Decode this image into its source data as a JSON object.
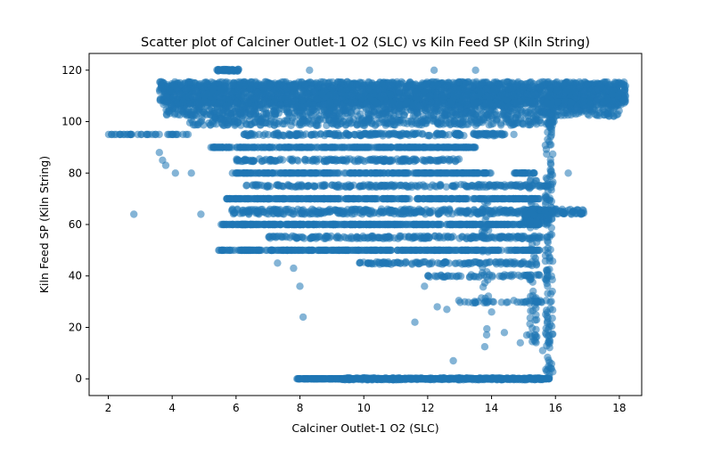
{
  "chart_data": {
    "type": "scatter",
    "title": "Scatter plot of Calciner Outlet-1 O2 (SLC) vs Kiln Feed  SP  (Kiln String)",
    "xlabel": "Calciner Outlet-1 O2 (SLC)",
    "ylabel": "Kiln Feed  SP  (Kiln String)",
    "xlim": [
      1.4,
      18.7
    ],
    "ylim": [
      -6.5,
      126.5
    ],
    "xticks": [
      2,
      4,
      6,
      8,
      10,
      12,
      14,
      16,
      18
    ],
    "yticks": [
      0,
      20,
      40,
      60,
      80,
      100,
      120
    ],
    "grid": false,
    "point_color": "#1f77b4",
    "point_alpha": 0.55,
    "bands": [
      {
        "y": 111,
        "x_range": [
          3.6,
          18.2
        ],
        "jitter": 4.5,
        "n": 2600
      },
      {
        "y": 105,
        "x_range": [
          3.8,
          18.0
        ],
        "jitter": 3.0,
        "n": 900
      },
      {
        "y": 120,
        "x_range": [
          5.4,
          6.1
        ],
        "jitter": 0.3,
        "n": 60
      },
      {
        "y": 100,
        "x_range": [
          4.5,
          16.0
        ],
        "jitter": 1.5,
        "n": 350
      },
      {
        "y": 95,
        "x_range": [
          2.0,
          4.5
        ],
        "jitter": 0.0,
        "n": 40
      },
      {
        "y": 95,
        "x_range": [
          6.2,
          14.5
        ],
        "jitter": 0.5,
        "n": 220
      },
      {
        "y": 90,
        "x_range": [
          5.2,
          13.5
        ],
        "jitter": 0.0,
        "n": 320
      },
      {
        "y": 85,
        "x_range": [
          6.0,
          13.0
        ],
        "jitter": 0.5,
        "n": 180
      },
      {
        "y": 80,
        "x_range": [
          5.8,
          14.0
        ],
        "jitter": 0.0,
        "n": 320
      },
      {
        "y": 80,
        "x_range": [
          14.7,
          15.4
        ],
        "jitter": 0.0,
        "n": 30
      },
      {
        "y": 75,
        "x_range": [
          6.3,
          15.8
        ],
        "jitter": 0.5,
        "n": 220
      },
      {
        "y": 70,
        "x_range": [
          5.7,
          15.5
        ],
        "jitter": 0.0,
        "n": 380
      },
      {
        "y": 65,
        "x_range": [
          5.8,
          16.9
        ],
        "jitter": 1.0,
        "n": 420
      },
      {
        "y": 60,
        "x_range": [
          5.5,
          15.5
        ],
        "jitter": 0.0,
        "n": 420
      },
      {
        "y": 63,
        "x_range": [
          15.0,
          15.8
        ],
        "jitter": 3.0,
        "n": 120
      },
      {
        "y": 55,
        "x_range": [
          7.0,
          15.8
        ],
        "jitter": 0.5,
        "n": 220
      },
      {
        "y": 50,
        "x_range": [
          5.4,
          15.6
        ],
        "jitter": 0.0,
        "n": 380
      },
      {
        "y": 45,
        "x_range": [
          9.8,
          15.5
        ],
        "jitter": 0.5,
        "n": 120
      },
      {
        "y": 40,
        "x_range": [
          12.0,
          15.5
        ],
        "jitter": 0.5,
        "n": 60
      },
      {
        "y": 30,
        "x_range": [
          12.8,
          15.8
        ],
        "jitter": 0.5,
        "n": 40
      },
      {
        "y": 0,
        "x_range": [
          7.9,
          15.8
        ],
        "jitter": 0.0,
        "n": 700
      },
      {
        "y": 0,
        "x_range": [
          9.3,
          15.6
        ],
        "jitter": 0.4,
        "n": 300
      }
    ],
    "columns": [
      {
        "x": 15.8,
        "y_range": [
          0,
          110
        ],
        "n": 150
      },
      {
        "x": 15.3,
        "y_range": [
          14,
          80
        ],
        "n": 60
      },
      {
        "x": 13.8,
        "y_range": [
          11,
          75
        ],
        "n": 30
      }
    ],
    "outliers": [
      [
        2.8,
        64
      ],
      [
        3.6,
        88
      ],
      [
        3.7,
        85
      ],
      [
        3.8,
        83
      ],
      [
        4.1,
        80
      ],
      [
        4.6,
        80
      ],
      [
        4.9,
        64
      ],
      [
        6.4,
        64
      ],
      [
        7.3,
        45
      ],
      [
        7.8,
        43
      ],
      [
        8.0,
        36
      ],
      [
        8.1,
        24
      ],
      [
        11.6,
        22
      ],
      [
        11.9,
        36
      ],
      [
        12.3,
        28
      ],
      [
        12.6,
        27
      ],
      [
        12.8,
        7
      ],
      [
        14.0,
        26
      ],
      [
        14.4,
        18
      ],
      [
        14.9,
        14
      ],
      [
        15.1,
        17
      ],
      [
        15.6,
        11
      ],
      [
        16.5,
        64
      ],
      [
        16.8,
        64
      ],
      [
        16.4,
        80
      ],
      [
        8.3,
        120
      ],
      [
        12.2,
        120
      ],
      [
        13.5,
        120
      ],
      [
        11.0,
        95
      ],
      [
        9.7,
        95
      ],
      [
        14.7,
        95
      ],
      [
        15.9,
        34
      ]
    ]
  }
}
